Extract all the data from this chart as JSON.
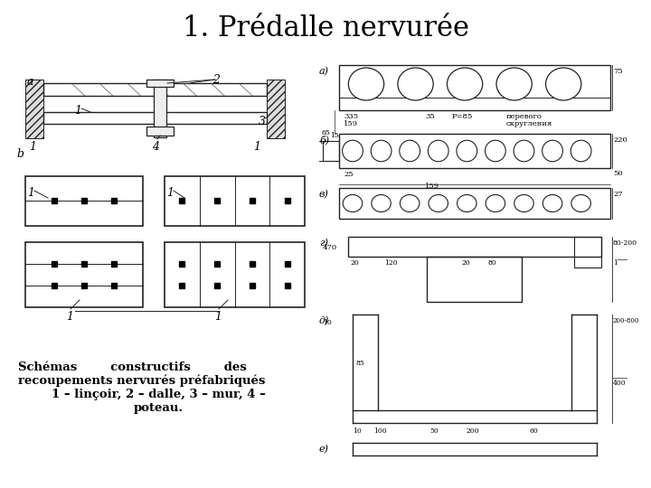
{
  "title": "1. Prédalle nervurée",
  "title_fontsize": 22,
  "bg_color": "#ffffff",
  "caption_lines": [
    "Schémas        constructifs        des",
    "recoupements nervurés préfabriqués",
    "1 – linçoir, 2 – dalle, 3 – mur, 4 –",
    "poteau."
  ]
}
